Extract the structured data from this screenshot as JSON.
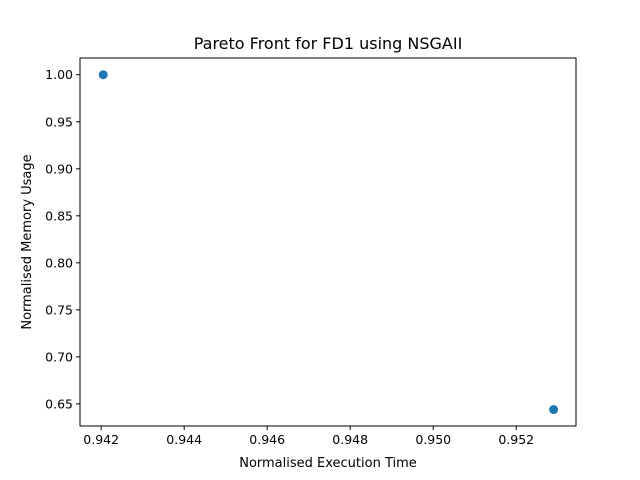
{
  "chart_data": {
    "type": "scatter",
    "title": "Pareto Front for FD1 using NSGAII",
    "xlabel": "Normalised Execution Time",
    "ylabel": "Normalised Memory Usage",
    "xlim": [
      0.94149,
      0.95344
    ],
    "ylim": [
      0.6265,
      1.0178
    ],
    "xticks": [
      "0.942",
      "0.944",
      "0.946",
      "0.948",
      "0.950",
      "0.952"
    ],
    "yticks": [
      "0.65",
      "0.70",
      "0.75",
      "0.80",
      "0.85",
      "0.90",
      "0.95",
      "1.00"
    ],
    "grid": false,
    "marker_color": "#1f77b4",
    "points": [
      {
        "x": 0.94205,
        "y": 1.0
      },
      {
        "x": 0.9529,
        "y": 0.644
      }
    ]
  }
}
